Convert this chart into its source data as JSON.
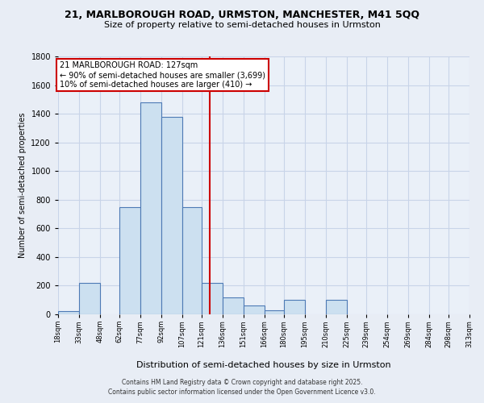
{
  "title_line1": "21, MARLBOROUGH ROAD, URMSTON, MANCHESTER, M41 5QQ",
  "title_line2": "Size of property relative to semi-detached houses in Urmston",
  "xlabel": "Distribution of semi-detached houses by size in Urmston",
  "ylabel": "Number of semi-detached properties",
  "annotation_title": "21 MARLBOROUGH ROAD: 127sqm",
  "annotation_line1": "← 90% of semi-detached houses are smaller (3,699)",
  "annotation_line2": "10% of semi-detached houses are larger (410) →",
  "bin_edges": [
    18,
    33,
    48,
    62,
    77,
    92,
    107,
    121,
    136,
    151,
    166,
    180,
    195,
    210,
    225,
    239,
    254,
    269,
    284,
    298,
    313
  ],
  "bin_counts": [
    20,
    220,
    0,
    750,
    1480,
    1380,
    750,
    220,
    120,
    60,
    30,
    100,
    0,
    100,
    0,
    0,
    0,
    0,
    0,
    0
  ],
  "bar_facecolor": "#cce0f0",
  "bar_edgecolor": "#4d7ab5",
  "vline_color": "#cc0000",
  "vline_x": 127,
  "box_facecolor": "#ffffff",
  "box_edgecolor": "#cc0000",
  "ylim": [
    0,
    1800
  ],
  "yticks": [
    0,
    200,
    400,
    600,
    800,
    1000,
    1200,
    1400,
    1600,
    1800
  ],
  "background_color": "#e8edf5",
  "plot_bg_color": "#eaf0f8",
  "grid_color": "#c8d4e8",
  "footer_line1": "Contains HM Land Registry data © Crown copyright and database right 2025.",
  "footer_line2": "Contains public sector information licensed under the Open Government Licence v3.0."
}
